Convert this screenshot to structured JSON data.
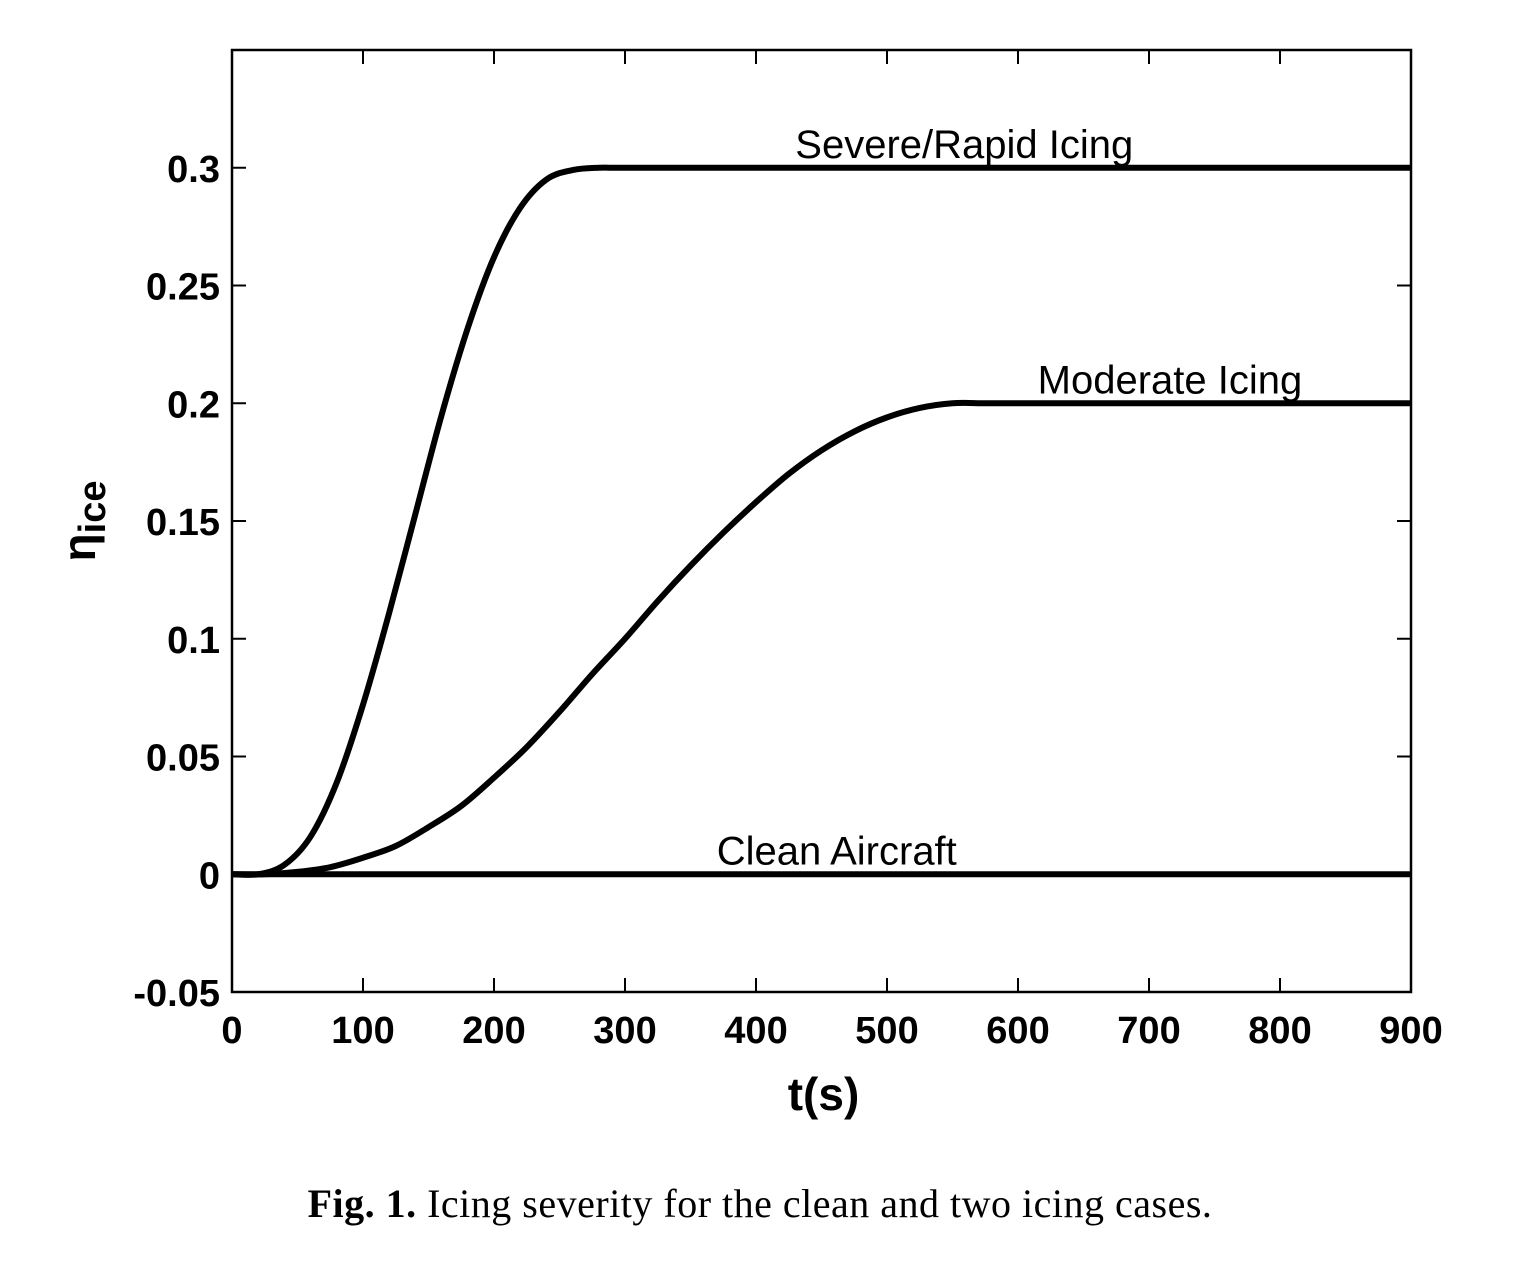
{
  "chart_data": {
    "type": "line",
    "title": "",
    "xlabel": "t(s)",
    "ylabel_main": "η",
    "ylabel_sub": "ice",
    "xlim": [
      0,
      900
    ],
    "ylim": [
      -0.05,
      0.35
    ],
    "xticks": [
      0,
      100,
      200,
      300,
      400,
      500,
      600,
      700,
      800,
      900
    ],
    "xtick_labels": [
      "0",
      "100",
      "200",
      "300",
      "400",
      "500",
      "600",
      "700",
      "800",
      "900"
    ],
    "yticks": [
      -0.05,
      0,
      0.05,
      0.1,
      0.15,
      0.2,
      0.25,
      0.3
    ],
    "ytick_labels": [
      "-0.05",
      "0",
      "0.05",
      "0.1",
      "0.15",
      "0.2",
      "0.25",
      "0.3"
    ],
    "grid": false,
    "line_color": "#000000",
    "series": [
      {
        "name": "Severe/Rapid Icing",
        "x": [
          0,
          20,
          40,
          60,
          80,
          100,
          120,
          140,
          160,
          180,
          200,
          220,
          240,
          260,
          280,
          300,
          400,
          500,
          600,
          700,
          800,
          900
        ],
        "values": [
          0,
          0.0,
          0.004,
          0.016,
          0.039,
          0.072,
          0.111,
          0.153,
          0.195,
          0.232,
          0.262,
          0.283,
          0.295,
          0.299,
          0.3,
          0.3,
          0.3,
          0.3,
          0.3,
          0.3,
          0.3,
          0.3
        ]
      },
      {
        "name": "Moderate Icing",
        "x": [
          0,
          25,
          50,
          75,
          100,
          125,
          150,
          175,
          200,
          225,
          250,
          275,
          300,
          325,
          350,
          375,
          400,
          425,
          450,
          475,
          500,
          525,
          550,
          575,
          600,
          700,
          800,
          900
        ],
        "values": [
          0,
          0.0,
          0.001,
          0.003,
          0.007,
          0.012,
          0.02,
          0.029,
          0.041,
          0.054,
          0.069,
          0.085,
          0.1,
          0.116,
          0.131,
          0.145,
          0.158,
          0.17,
          0.18,
          0.188,
          0.194,
          0.198,
          0.2,
          0.2,
          0.2,
          0.2,
          0.2,
          0.2
        ]
      },
      {
        "name": "Clean Aircraft",
        "x": [
          0,
          900
        ],
        "values": [
          0,
          0
        ]
      }
    ],
    "annotations": [
      {
        "text": "Severe/Rapid Icing",
        "x": 430,
        "y": 0.3
      },
      {
        "text": "Moderate Icing",
        "x": 615,
        "y": 0.2
      },
      {
        "text": "Clean Aircraft",
        "x": 370,
        "y": 0
      }
    ]
  },
  "caption": {
    "fig_label": "Fig. 1.",
    "text": " Icing severity for the clean and two icing cases."
  }
}
